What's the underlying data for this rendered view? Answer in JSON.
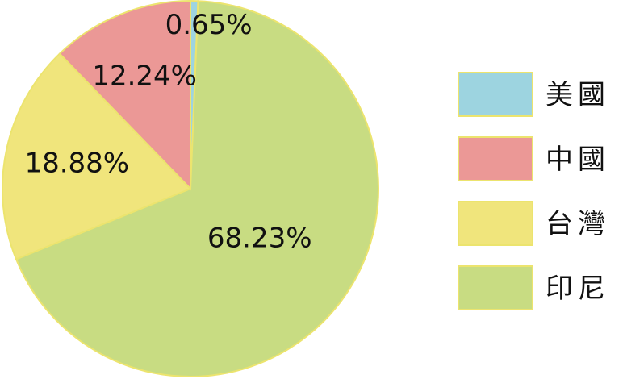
{
  "chart_data": {
    "type": "pie",
    "title": "",
    "legend_placement": "right",
    "start_direction": "top",
    "direction": "clockwise",
    "slices": [
      {
        "label": "美國",
        "value": 0.65,
        "data_label": "0.65%",
        "color": "#9dd4e0"
      },
      {
        "label": "印尼",
        "value": 68.23,
        "data_label": "68.23%",
        "color": "#c8dc82"
      },
      {
        "label": "台灣",
        "value": 18.88,
        "data_label": "18.88%",
        "color": "#f0e57c"
      },
      {
        "label": "中國",
        "value": 12.24,
        "data_label": "12.24%",
        "color": "#eb9896"
      }
    ],
    "legend": [
      {
        "label": "美國",
        "color": "#9dd4e0"
      },
      {
        "label": "中國",
        "color": "#eb9896"
      },
      {
        "label": "台灣",
        "color": "#f0e57c"
      },
      {
        "label": "印尼",
        "color": "#c8dc82"
      }
    ],
    "slice_border_color": "#ece46e"
  }
}
